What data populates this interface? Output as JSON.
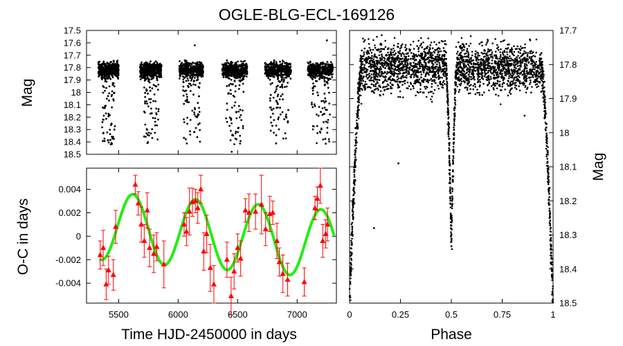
{
  "title": "OGLE-BLG-ECL-169126",
  "colors": {
    "points": "#000000",
    "oc_markers": "#ff0000",
    "fit_line": "#22ee11"
  },
  "chart_data": [
    {
      "id": "lightcurve",
      "type": "scatter",
      "ylabel": "Mag",
      "ylim": [
        17.5,
        18.5
      ],
      "y_inverted": true,
      "xlim": [
        5230,
        7330
      ],
      "yticks": [
        "17.5",
        "17.6",
        "17.7",
        "17.8",
        "17.9",
        "18",
        "18.1",
        "18.2",
        "18.3",
        "18.4",
        "18.5"
      ],
      "yticks_values": [
        17.5,
        17.6,
        17.7,
        17.8,
        17.9,
        18.0,
        18.1,
        18.2,
        18.3,
        18.4,
        18.5
      ],
      "seasons": [
        {
          "start": 5330,
          "end": 5500,
          "dip_x": [
            5360,
            5470
          ]
        },
        {
          "start": 5680,
          "end": 5860,
          "dip_x": [
            5710,
            5840
          ]
        },
        {
          "start": 6010,
          "end": 6210,
          "dip_x": [
            6040,
            6190
          ]
        },
        {
          "start": 6370,
          "end": 6580,
          "dip_x": [
            6400,
            6550
          ]
        },
        {
          "start": 6730,
          "end": 6950,
          "dip_x": [
            6770,
            6930
          ]
        },
        {
          "start": 7090,
          "end": 7300,
          "dip_x": [
            7120,
            7280
          ]
        }
      ],
      "baseline_mag": 17.82,
      "eclipse_depth_mag": 18.42,
      "outliers": [
        {
          "x": 6140,
          "y": 17.62
        },
        {
          "x": 7250,
          "y": 17.58
        },
        {
          "x": 6450,
          "y": 18.48
        }
      ]
    },
    {
      "id": "oc",
      "type": "scatter",
      "xlabel": "Time HJD-2450000 in days",
      "ylabel": "O-C in days",
      "xlim": [
        5230,
        7330
      ],
      "ylim": [
        -0.0057,
        0.0058
      ],
      "xticks": [
        "5500",
        "6000",
        "6500",
        "7000"
      ],
      "xticks_values": [
        5500,
        6000,
        6500,
        7000
      ],
      "yticks": [
        "0.004",
        "0.002",
        "0",
        "-0.002",
        "-0.004"
      ],
      "yticks_values": [
        0.004,
        0.002,
        0,
        -0.002,
        -0.004
      ],
      "series": [
        {
          "kind": "oc_points",
          "points": [
            {
              "x": 5345,
              "y": -0.0016,
              "e": 0.0012
            },
            {
              "x": 5370,
              "y": -0.001,
              "e": 0.0015
            },
            {
              "x": 5395,
              "y": -0.0041,
              "e": 0.0013
            },
            {
              "x": 5415,
              "y": -0.0029,
              "e": 0.0012
            },
            {
              "x": 5455,
              "y": -0.0033,
              "e": 0.0013
            },
            {
              "x": 5475,
              "y": 0.0008,
              "e": 0.0014
            },
            {
              "x": 5640,
              "y": 0.0044,
              "e": 0.0008
            },
            {
              "x": 5665,
              "y": 0.0028,
              "e": 0.001
            },
            {
              "x": 5690,
              "y": 0.001,
              "e": 0.0015
            },
            {
              "x": 5715,
              "y": -0.0004,
              "e": 0.0014
            },
            {
              "x": 5740,
              "y": 0.0022,
              "e": 0.0015
            },
            {
              "x": 5760,
              "y": -0.001,
              "e": 0.0016
            },
            {
              "x": 5795,
              "y": -0.0015,
              "e": 0.0016
            },
            {
              "x": 5820,
              "y": -0.0009,
              "e": 0.0012
            },
            {
              "x": 5880,
              "y": -0.0024,
              "e": 0.002
            },
            {
              "x": 6050,
              "y": 0.001,
              "e": 0.001
            },
            {
              "x": 6070,
              "y": 0.0004,
              "e": 0.0012
            },
            {
              "x": 6095,
              "y": 0.0021,
              "e": 0.002
            },
            {
              "x": 6120,
              "y": 0.0029,
              "e": 0.0012
            },
            {
              "x": 6145,
              "y": 0.003,
              "e": 0.001
            },
            {
              "x": 6165,
              "y": 0.0024,
              "e": 0.0013
            },
            {
              "x": 6190,
              "y": 0.004,
              "e": 0.0012
            },
            {
              "x": 6215,
              "y": -0.0013,
              "e": 0.0016
            },
            {
              "x": 6240,
              "y": 0.0002,
              "e": 0.0016
            },
            {
              "x": 6270,
              "y": -0.0027,
              "e": 0.002
            },
            {
              "x": 6300,
              "y": -0.0041,
              "e": 0.0016
            },
            {
              "x": 6410,
              "y": -0.002,
              "e": 0.0015
            },
            {
              "x": 6445,
              "y": -0.0051,
              "e": 0.0016
            },
            {
              "x": 6470,
              "y": -0.003,
              "e": 0.0015
            },
            {
              "x": 6500,
              "y": -0.001,
              "e": 0.0012
            },
            {
              "x": 6525,
              "y": -0.0019,
              "e": 0.0015
            },
            {
              "x": 6565,
              "y": 0.0022,
              "e": 0.001
            },
            {
              "x": 6595,
              "y": 0.002,
              "e": 0.0016
            },
            {
              "x": 6650,
              "y": 0.0021,
              "e": 0.0015
            },
            {
              "x": 6700,
              "y": 0.0027,
              "e": 0.0025
            },
            {
              "x": 6735,
              "y": 0.0006,
              "e": 0.0014
            },
            {
              "x": 6770,
              "y": 0.0019,
              "e": 0.0015
            },
            {
              "x": 6795,
              "y": 0.002,
              "e": 0.001
            },
            {
              "x": 6830,
              "y": -0.0004,
              "e": 0.0015
            },
            {
              "x": 6850,
              "y": -0.0022,
              "e": 0.0012
            },
            {
              "x": 6880,
              "y": -0.0032,
              "e": 0.0016
            },
            {
              "x": 6920,
              "y": -0.0037,
              "e": 0.0014
            },
            {
              "x": 7060,
              "y": -0.0039,
              "e": 0.0012
            },
            {
              "x": 7150,
              "y": 0.0024,
              "e": 0.001
            },
            {
              "x": 7170,
              "y": 0.0032,
              "e": 0.001
            },
            {
              "x": 7195,
              "y": 0.0043,
              "e": 0.0015
            },
            {
              "x": 7215,
              "y": -0.0004,
              "e": 0.0014
            },
            {
              "x": 7240,
              "y": 0.0002,
              "e": 0.0012
            },
            {
              "x": 7255,
              "y": 0.001,
              "e": 0.0014
            }
          ]
        },
        {
          "kind": "sinusoid_fit",
          "x_start": 5340,
          "x_end": 7310,
          "offset": 0.0,
          "amplitude_start": 0.0029,
          "amplitude_end": 0.0029,
          "drift_start": 0.0009,
          "drift_end": -0.0007,
          "period_days": 527,
          "peak_x": 5620
        }
      ]
    },
    {
      "id": "phase",
      "type": "scatter",
      "xlabel": "Phase",
      "ylabel": "Mag",
      "xlim": [
        0,
        1
      ],
      "ylim": [
        17.7,
        18.5
      ],
      "y_inverted": true,
      "xticks": [
        "0",
        "0.25",
        "0.5",
        "0.75",
        "1"
      ],
      "xticks_values": [
        0,
        0.25,
        0.5,
        0.75,
        1
      ],
      "yticks": [
        "17.7",
        "17.8",
        "17.9",
        "18",
        "18.1",
        "18.2",
        "18.3",
        "18.4",
        "18.5"
      ],
      "yticks_values": [
        17.7,
        17.8,
        17.9,
        18.0,
        18.1,
        18.2,
        18.3,
        18.4,
        18.5
      ],
      "baseline_mag": 17.81,
      "primary_eclipse": {
        "phase": 0.0,
        "depth_mag": 18.52,
        "half_width": 0.06
      },
      "secondary_eclipse": {
        "phase": 0.5,
        "depth_mag": 18.33,
        "half_width": 0.025
      },
      "outliers": [
        {
          "x": 0.12,
          "y": 18.28
        },
        {
          "x": 0.24,
          "y": 18.09
        },
        {
          "x": 0.86,
          "y": 17.95
        }
      ]
    }
  ]
}
